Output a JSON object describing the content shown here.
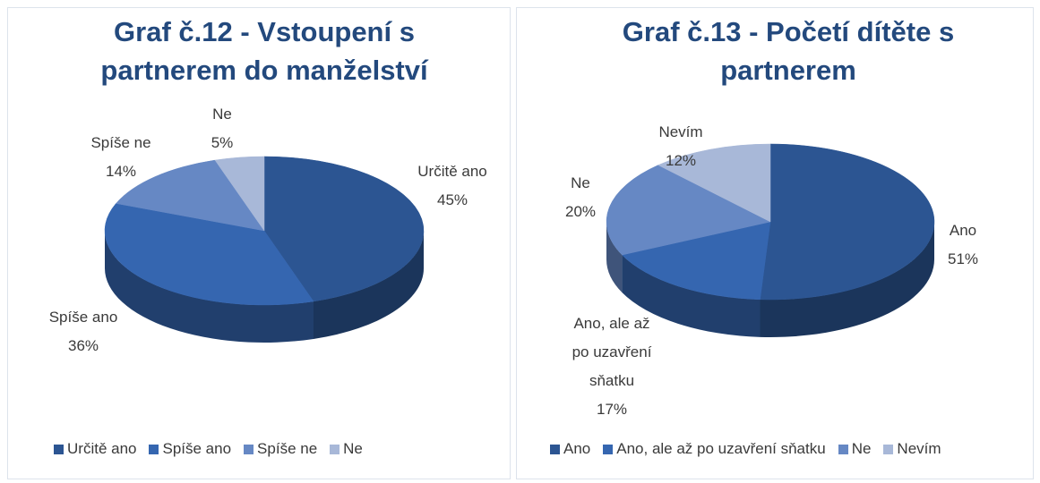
{
  "chart_data": [
    {
      "type": "pie3d",
      "title": "Graf č.12 - Vstoupení s partnerem do manželství",
      "categories": [
        "Určitě ano",
        "Spíše ano",
        "Spíše ne",
        "Ne"
      ],
      "values": [
        45,
        36,
        14,
        5
      ],
      "value_labels": [
        "45%",
        "36%",
        "14%",
        "5%"
      ],
      "colors": [
        "#2c5592",
        "#3566b0",
        "#6688c4",
        "#a8b8d8"
      ],
      "legend": "bottom"
    },
    {
      "type": "pie3d",
      "title": "Graf č.13 - Početí dítěte s partnerem",
      "categories": [
        "Ano",
        "Ano, ale až po uzavření sňatku",
        "Ne",
        "Nevím"
      ],
      "values": [
        51,
        17,
        20,
        12
      ],
      "value_labels": [
        "51%",
        "17%",
        "20%",
        "12%"
      ],
      "colors": [
        "#2c5592",
        "#3566b0",
        "#6688c4",
        "#a8b8d8"
      ],
      "legend": "bottom"
    }
  ]
}
